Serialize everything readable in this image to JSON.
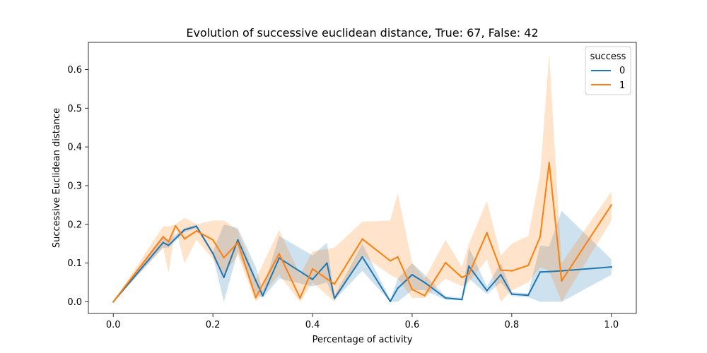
{
  "chart_data": {
    "type": "line",
    "title": "Evolution of successive euclidean distance, True: 67, False: 42",
    "xlabel": "Percentage of activity",
    "ylabel": "Successive Euclidean distance",
    "xlim": [
      -0.05,
      1.05
    ],
    "ylim": [
      -0.03,
      0.67
    ],
    "xticks": [
      0.0,
      0.2,
      0.4,
      0.6,
      0.8,
      1.0
    ],
    "xtick_labels": [
      "0.0",
      "0.2",
      "0.4",
      "0.6",
      "0.8",
      "1.0"
    ],
    "yticks": [
      0.0,
      0.1,
      0.2,
      0.3,
      0.4,
      0.5,
      0.6
    ],
    "ytick_labels": [
      "0.0",
      "0.1",
      "0.2",
      "0.3",
      "0.4",
      "0.5",
      "0.6"
    ],
    "grid": false,
    "legend": {
      "title": "success",
      "placement": "top-right"
    },
    "series": [
      {
        "name": "0",
        "color": "#1f77b4",
        "points": [
          [
            0.0,
            0.0
          ],
          [
            0.1,
            0.153
          ],
          [
            0.111,
            0.146
          ],
          [
            0.143,
            0.186
          ],
          [
            0.167,
            0.195
          ],
          [
            0.2,
            0.125
          ],
          [
            0.222,
            0.063
          ],
          [
            0.25,
            0.16
          ],
          [
            0.286,
            0.055
          ],
          [
            0.3,
            0.016
          ],
          [
            0.333,
            0.113
          ],
          [
            0.4,
            0.058
          ],
          [
            0.429,
            0.1
          ],
          [
            0.444,
            0.009
          ],
          [
            0.5,
            0.116
          ],
          [
            0.556,
            0.001
          ],
          [
            0.571,
            0.035
          ],
          [
            0.6,
            0.07
          ],
          [
            0.625,
            0.05
          ],
          [
            0.667,
            0.01
          ],
          [
            0.7,
            0.006
          ],
          [
            0.714,
            0.092
          ],
          [
            0.75,
            0.029
          ],
          [
            0.778,
            0.07
          ],
          [
            0.8,
            0.02
          ],
          [
            0.833,
            0.017
          ],
          [
            0.857,
            0.077
          ],
          [
            0.875,
            0.078
          ],
          [
            0.9,
            0.08
          ],
          [
            1.0,
            0.09
          ]
        ],
        "lower": [
          0.0,
          0.14,
          0.14,
          0.18,
          0.19,
          0.12,
          0.0,
          0.13,
          0.02,
          0.01,
          0.06,
          0.04,
          0.05,
          0.005,
          0.08,
          0.0,
          0.0,
          0.03,
          0.03,
          0.005,
          0.004,
          0.06,
          0.02,
          0.05,
          0.015,
          0.012,
          0.0,
          0.0,
          0.0,
          0.07
        ],
        "upper": [
          0.0,
          0.17,
          0.16,
          0.19,
          0.2,
          0.13,
          0.2,
          0.19,
          0.09,
          0.03,
          0.17,
          0.12,
          0.153,
          0.015,
          0.15,
          0.005,
          0.06,
          0.1,
          0.07,
          0.015,
          0.01,
          0.14,
          0.04,
          0.1,
          0.025,
          0.022,
          0.145,
          0.143,
          0.235,
          0.11
        ]
      },
      {
        "name": "1",
        "color": "#ff7f0e",
        "points": [
          [
            0.0,
            0.0
          ],
          [
            0.1,
            0.168
          ],
          [
            0.111,
            0.155
          ],
          [
            0.125,
            0.196
          ],
          [
            0.143,
            0.163
          ],
          [
            0.167,
            0.183
          ],
          [
            0.2,
            0.16
          ],
          [
            0.222,
            0.114
          ],
          [
            0.25,
            0.153
          ],
          [
            0.286,
            0.011
          ],
          [
            0.333,
            0.124
          ],
          [
            0.375,
            0.01
          ],
          [
            0.4,
            0.085
          ],
          [
            0.444,
            0.046
          ],
          [
            0.5,
            0.162
          ],
          [
            0.556,
            0.106
          ],
          [
            0.571,
            0.116
          ],
          [
            0.6,
            0.032
          ],
          [
            0.625,
            0.016
          ],
          [
            0.667,
            0.101
          ],
          [
            0.7,
            0.063
          ],
          [
            0.714,
            0.072
          ],
          [
            0.75,
            0.178
          ],
          [
            0.778,
            0.082
          ],
          [
            0.8,
            0.08
          ],
          [
            0.833,
            0.094
          ],
          [
            0.857,
            0.168
          ],
          [
            0.875,
            0.359
          ],
          [
            0.9,
            0.054
          ],
          [
            1.0,
            0.25
          ]
        ],
        "lower": [
          0.0,
          0.14,
          0.075,
          0.19,
          0.1,
          0.16,
          0.11,
          0.07,
          0.12,
          0.0,
          0.07,
          0.0,
          0.05,
          0.0,
          0.12,
          0.07,
          0.06,
          0.01,
          0.01,
          0.06,
          0.04,
          0.05,
          0.11,
          0.0,
          0.03,
          0.05,
          0.09,
          0.08,
          0.0,
          0.21
        ],
        "upper": [
          0.0,
          0.195,
          0.195,
          0.2,
          0.217,
          0.2,
          0.21,
          0.21,
          0.185,
          0.06,
          0.185,
          0.07,
          0.13,
          0.14,
          0.207,
          0.21,
          0.28,
          0.1,
          0.06,
          0.16,
          0.09,
          0.15,
          0.26,
          0.12,
          0.15,
          0.17,
          0.33,
          0.64,
          0.1,
          0.285
        ]
      }
    ]
  }
}
